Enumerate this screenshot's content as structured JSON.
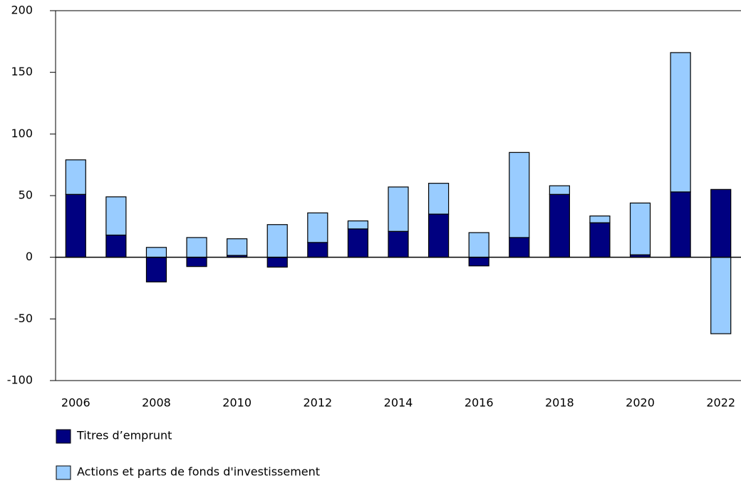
{
  "chart_data": {
    "type": "bar",
    "stacked": true,
    "categories": [
      "2006",
      null,
      "2008",
      null,
      "2010",
      null,
      "2012",
      null,
      "2014",
      null,
      "2016",
      null,
      "2018",
      null,
      "2020",
      null,
      "2022"
    ],
    "series": [
      {
        "name": "Titres d’emprunt",
        "color": "#000080",
        "values": [
          51,
          18,
          -20,
          -7.5,
          1.5,
          -8,
          12,
          23,
          21,
          35,
          -7,
          16,
          51,
          28,
          2,
          53,
          55
        ]
      },
      {
        "name": "Actions et parts de fonds d'investissement",
        "color": "#99ccff",
        "values": [
          28,
          31,
          8,
          16,
          13.5,
          26.5,
          24,
          6.5,
          36,
          25,
          20,
          69,
          7,
          5.5,
          42,
          113,
          -62
        ]
      }
    ],
    "ylim": [
      -100,
      200
    ],
    "yticks": [
      -100,
      -50,
      0,
      50,
      100,
      150,
      200
    ]
  }
}
